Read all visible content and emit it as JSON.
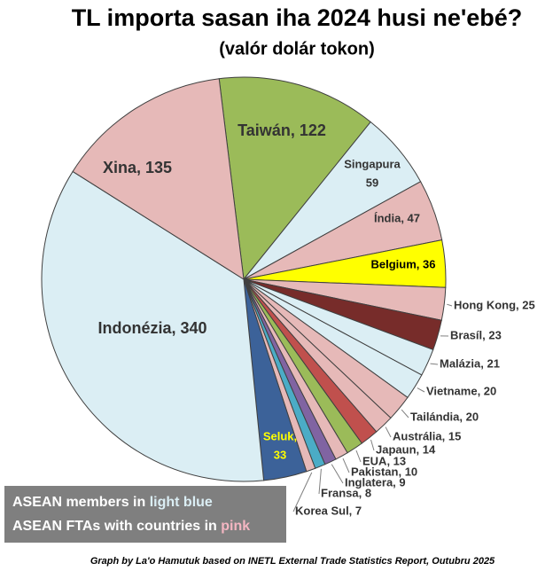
{
  "chart_data": {
    "type": "pie",
    "title": "TL  importa sasan iha 2024 husi ne'ebé?",
    "subtitle": "(valór dolár tokon)",
    "labels": [
      "Taiwán, 122",
      [
        "Singapura",
        "59"
      ],
      "Índia, 47",
      "Belgium, 36",
      "Hong Kong, 25",
      "Brasíl, 23",
      "Malázia, 21",
      "Vietname, 20",
      "Tailándia, 20",
      "Austrália, 15",
      "Japaun, 14",
      "EUA, 13",
      "Pakistan, 10",
      "Inglatera, 9",
      "Fransa, 8",
      "Korea Sul, 7",
      [
        "Seluk,",
        "33"
      ],
      "Indonézia, 340",
      "Xina, 135"
    ],
    "values": [
      122,
      59,
      47,
      36,
      25,
      23,
      21,
      20,
      20,
      15,
      14,
      13,
      10,
      9,
      8,
      7,
      33,
      340,
      135
    ],
    "colors": [
      "#9bbb59",
      "#dbeef4",
      "#e6b9b8",
      "#ffff00",
      "#e6b9b8",
      "#772c2a",
      "#dbeef4",
      "#dbeef4",
      "#e6b9b8",
      "#e6b9b8",
      "#c0504d",
      "#9bbb59",
      "#e6b9b8",
      "#8064a2",
      "#4bacc6",
      "#e6b9b8",
      "#3c6299",
      "#dbeef4",
      "#e6b9b8"
    ],
    "legend": [
      [
        "ASEAN members in ",
        "light blue"
      ],
      [
        "ASEAN FTAs with countries in ",
        "pink"
      ]
    ],
    "note": "Graph by La'o Hamutuk based on INETL External Trade Statistics Report, Outubru 2025"
  }
}
